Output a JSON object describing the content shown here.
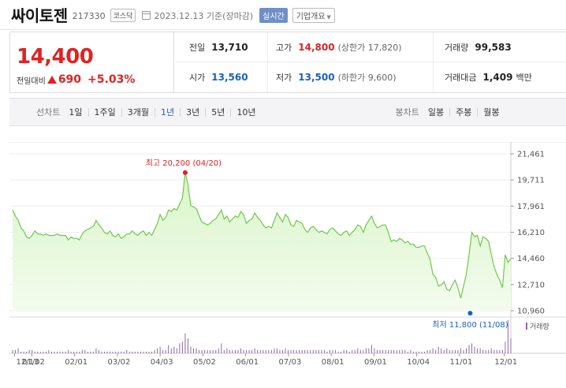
{
  "header": {
    "stock_name": "싸이토젠",
    "stock_code": "217330",
    "market": "코스닥",
    "date": "2023.12.13 기준(장마감)",
    "realtime_button": "실시간",
    "overview_button": "기업개요"
  },
  "price": {
    "current": "14,400",
    "change_label": "전일대비",
    "change_amount": "690",
    "change_percent": "+5.03%",
    "direction": "up"
  },
  "stats": {
    "prev_close_label": "전일",
    "prev_close": "13,710",
    "high_label": "고가",
    "high": "14,800",
    "upper_limit": "(상한가 17,820)",
    "volume_label": "거래량",
    "volume": "99,583",
    "open_label": "시가",
    "open": "13,560",
    "low_label": "저가",
    "low": "13,500",
    "lower_limit": "(하한가 9,600)",
    "amount_label": "거래대금",
    "amount": "1,409",
    "amount_unit": "백만"
  },
  "period_bar": {
    "line_chart_label": "선차트",
    "periods": [
      "1일",
      "1주일",
      "3개월",
      "1년",
      "3년",
      "5년",
      "10년"
    ],
    "active_period": "1년",
    "candle_chart_label": "봉차트",
    "candle_periods": [
      "일봉",
      "주봉",
      "월봉"
    ]
  },
  "colors": {
    "up": "#e12222",
    "down": "#1c5fc0",
    "line": "#6fc94a",
    "fill": "#d9f5c9",
    "volume": "#8a6aa3"
  },
  "chart_data": {
    "type": "area",
    "y_ticks": [
      "21,461",
      "19,711",
      "17,961",
      "16,210",
      "14,460",
      "12,710",
      "10,960"
    ],
    "ylim": [
      10960,
      21461
    ],
    "x_ticks": [
      "12/13",
      "01/02",
      "02/01",
      "03/02",
      "04/03",
      "05/02",
      "06/01",
      "07/03",
      "08/01",
      "09/01",
      "10/04",
      "11/01",
      "12/01"
    ],
    "max_annotation": "최고 20,200 (04/20)",
    "min_annotation": "최저 11,800 (11/08)",
    "volume_label": "거래량",
    "series": [
      {
        "values": [
          17700,
          17300,
          17000,
          16500,
          16300,
          15900,
          15800,
          16000,
          16300,
          16100,
          16100,
          16000,
          16100,
          16000,
          16000,
          16000,
          16100,
          16000,
          16000,
          16000,
          15700,
          15900,
          15800,
          15800,
          15700,
          16100,
          16300,
          16400,
          16500,
          16600,
          17000,
          16700,
          16500,
          16200,
          16100,
          16300,
          16000,
          15900,
          16100,
          15800,
          15900,
          16100,
          16100,
          16300,
          16100,
          16000,
          16200,
          16300,
          16000,
          16200,
          16000,
          16400,
          16800,
          17400,
          17000,
          17200,
          17700,
          17600,
          17800,
          17700,
          18100,
          18500,
          20200,
          19400,
          18000,
          17900,
          17800,
          17300,
          16900,
          16800,
          16700,
          16800,
          17000,
          17100,
          17400,
          17700,
          17100,
          17300,
          16900,
          17100,
          17300,
          17200,
          17600,
          17400,
          16800,
          17000,
          17100,
          17500,
          17200,
          17000,
          16700,
          16500,
          16600,
          16500,
          17000,
          17500,
          17200,
          16900,
          17400,
          17200,
          16700,
          16600,
          17000,
          16900,
          16800,
          16400,
          16200,
          16500,
          16600,
          16400,
          16200,
          16300,
          16200,
          16100,
          16400,
          16500,
          16300,
          16100,
          16000,
          16200,
          16300,
          16000,
          16200,
          16400,
          16700,
          16600,
          16200,
          16700,
          17000,
          17300,
          16800,
          16500,
          16600,
          16700,
          16700,
          16200,
          15600,
          15700,
          15600,
          15800,
          15700,
          15500,
          15600,
          15400,
          15400,
          15200,
          15200,
          15300,
          15300,
          14800,
          14400,
          13400,
          13200,
          12600,
          12700,
          12900,
          12400,
          12300,
          12700,
          13000,
          12500,
          11800,
          12600,
          13400,
          14700,
          16200,
          15900,
          16000,
          15300,
          15900,
          15800,
          15600,
          14700,
          13900,
          13400,
          13000,
          12500,
          14700,
          14200,
          14400
        ]
      }
    ],
    "volume_values": [
      2,
      2,
      3,
      1,
      1,
      1,
      2,
      2,
      1,
      1,
      1,
      1,
      1,
      2,
      1,
      1,
      1,
      1,
      1,
      1,
      2,
      1,
      1,
      1,
      1,
      2,
      2,
      1,
      1,
      1,
      3,
      2,
      1,
      1,
      1,
      1,
      1,
      1,
      1,
      1,
      1,
      2,
      1,
      1,
      1,
      1,
      1,
      1,
      1,
      1,
      1,
      2,
      3,
      4,
      2,
      2,
      5,
      3,
      4,
      3,
      6,
      7,
      12,
      9,
      4,
      3,
      3,
      2,
      2,
      2,
      2,
      2,
      2,
      2,
      3,
      6,
      2,
      3,
      2,
      2,
      2,
      2,
      3,
      2,
      2,
      2,
      2,
      3,
      2,
      2,
      2,
      2,
      2,
      2,
      3,
      3,
      2,
      2,
      3,
      2,
      2,
      2,
      2,
      2,
      2,
      2,
      2,
      2,
      2,
      2,
      2,
      2,
      2,
      1,
      2,
      2,
      2,
      1,
      1,
      2,
      2,
      1,
      2,
      2,
      3,
      2,
      2,
      3,
      3,
      5,
      3,
      2,
      2,
      2,
      2,
      2,
      2,
      2,
      2,
      2,
      2,
      2,
      1,
      2,
      1,
      1,
      1,
      1,
      1,
      2,
      2,
      3,
      2,
      4,
      3,
      2,
      3,
      2,
      2,
      2,
      2,
      3,
      2,
      3,
      5,
      6,
      4,
      3,
      3,
      2,
      2,
      2,
      3,
      2,
      2,
      2,
      2,
      7,
      20,
      9
    ]
  }
}
